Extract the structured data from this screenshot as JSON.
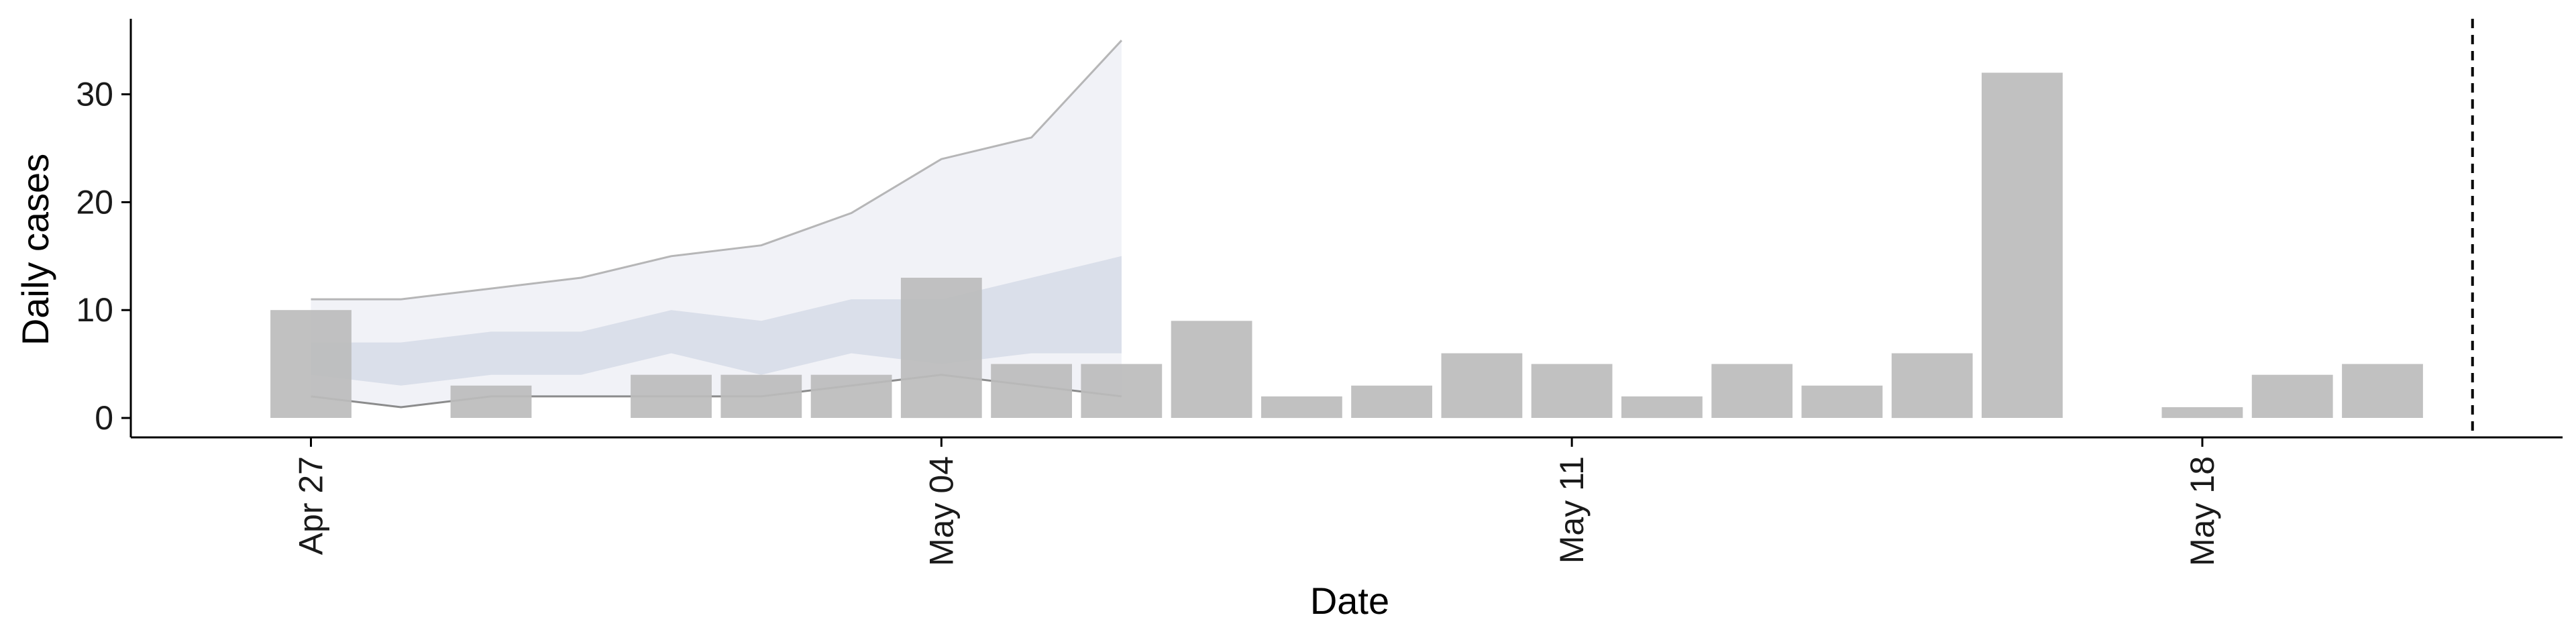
{
  "chart_data": {
    "type": "bar",
    "xlabel": "Date",
    "ylabel": "Daily cases",
    "x_ticks": [
      {
        "date": "2020-04-27",
        "label": "Apr 27"
      },
      {
        "date": "2020-05-04",
        "label": "May 04"
      },
      {
        "date": "2020-05-11",
        "label": "May 11"
      },
      {
        "date": "2020-05-18",
        "label": "May 18"
      }
    ],
    "y_ticks": [
      0,
      10,
      20,
      30
    ],
    "xlim": [
      "2020-04-25",
      "2020-05-22"
    ],
    "ylim": [
      -1.8,
      37
    ],
    "grid": false,
    "bars": [
      {
        "date": "2020-04-27",
        "value": 10
      },
      {
        "date": "2020-04-28",
        "value": 0
      },
      {
        "date": "2020-04-29",
        "value": 3
      },
      {
        "date": "2020-04-30",
        "value": 0
      },
      {
        "date": "2020-05-01",
        "value": 4
      },
      {
        "date": "2020-05-02",
        "value": 4
      },
      {
        "date": "2020-05-03",
        "value": 4
      },
      {
        "date": "2020-05-04",
        "value": 13
      },
      {
        "date": "2020-05-05",
        "value": 5
      },
      {
        "date": "2020-05-06",
        "value": 5
      },
      {
        "date": "2020-05-07",
        "value": 9
      },
      {
        "date": "2020-05-08",
        "value": 2
      },
      {
        "date": "2020-05-09",
        "value": 3
      },
      {
        "date": "2020-05-10",
        "value": 6
      },
      {
        "date": "2020-05-11",
        "value": 5
      },
      {
        "date": "2020-05-12",
        "value": 2
      },
      {
        "date": "2020-05-13",
        "value": 5
      },
      {
        "date": "2020-05-14",
        "value": 3
      },
      {
        "date": "2020-05-15",
        "value": 6
      },
      {
        "date": "2020-05-16",
        "value": 32
      },
      {
        "date": "2020-05-17",
        "value": 0
      },
      {
        "date": "2020-05-18",
        "value": 1
      },
      {
        "date": "2020-05-19",
        "value": 4
      },
      {
        "date": "2020-05-20",
        "value": 5
      }
    ],
    "bands": [
      {
        "kind": "outer",
        "dates": [
          "2020-04-27",
          "2020-04-28",
          "2020-04-29",
          "2020-04-30",
          "2020-05-01",
          "2020-05-02",
          "2020-05-03",
          "2020-05-04",
          "2020-05-05",
          "2020-05-06"
        ],
        "lower": [
          2,
          1,
          2,
          2,
          2,
          2,
          3,
          4,
          3,
          2
        ],
        "upper": [
          11,
          11,
          12,
          13,
          15,
          16,
          19,
          24,
          26,
          35
        ]
      },
      {
        "kind": "inner",
        "dates": [
          "2020-04-27",
          "2020-04-28",
          "2020-04-29",
          "2020-04-30",
          "2020-05-01",
          "2020-05-02",
          "2020-05-03",
          "2020-05-04",
          "2020-05-05",
          "2020-05-06"
        ],
        "lower": [
          4,
          3,
          4,
          4,
          6,
          4,
          6,
          5,
          6,
          6
        ],
        "upper": [
          7,
          7,
          8,
          8,
          10,
          9,
          11,
          11,
          13,
          15
        ]
      }
    ],
    "reference_line": {
      "date": "2020-05-21",
      "style": "dashed"
    },
    "colors": {
      "bar": "#bcbcbc",
      "outer_band": "#eef0f6",
      "inner_band": "#d4d9e6",
      "outer_line": "#9a9a9a",
      "axis": "#000000"
    }
  }
}
